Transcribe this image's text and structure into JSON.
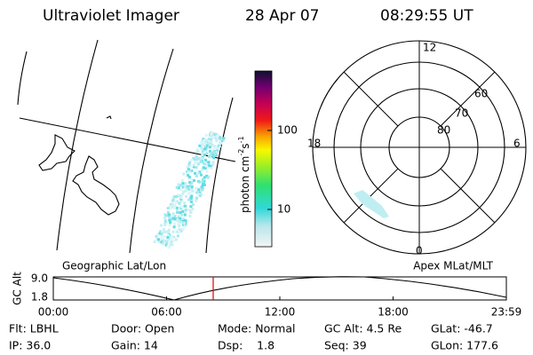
{
  "header": {
    "instrument": "Ultraviolet Imager",
    "date": "28 Apr 07",
    "time": "08:29:55 UT"
  },
  "colorbar": {
    "unit_parts": [
      "photon cm",
      "-2",
      "s",
      "-1"
    ],
    "ticks": [
      "100",
      "10"
    ]
  },
  "polar": {
    "hours": {
      "top": "12",
      "bottom": "0",
      "left": "18",
      "right": "6"
    },
    "rings": [
      "80",
      "70",
      "60"
    ]
  },
  "strip": {
    "left_title": "Geographic Lat/Lon",
    "right_title": "Apex MLat/MLT",
    "y_label": "GC Alt",
    "y_ticks": [
      "9.0",
      "1.8"
    ],
    "x_ticks": [
      "00:00",
      "06:00",
      "12:00",
      "18:00",
      "23:59"
    ]
  },
  "info": {
    "rows": [
      [
        "Flt: LBHL",
        "Door: Open",
        "Mode: Normal",
        "GC Alt: 4.5 Re",
        "GLat: -46.7"
      ],
      [
        "IP: 36.0",
        "Gain: 14",
        "Dsp:    1.8",
        "Seq: 39",
        "GLon: 177.6"
      ]
    ]
  }
}
